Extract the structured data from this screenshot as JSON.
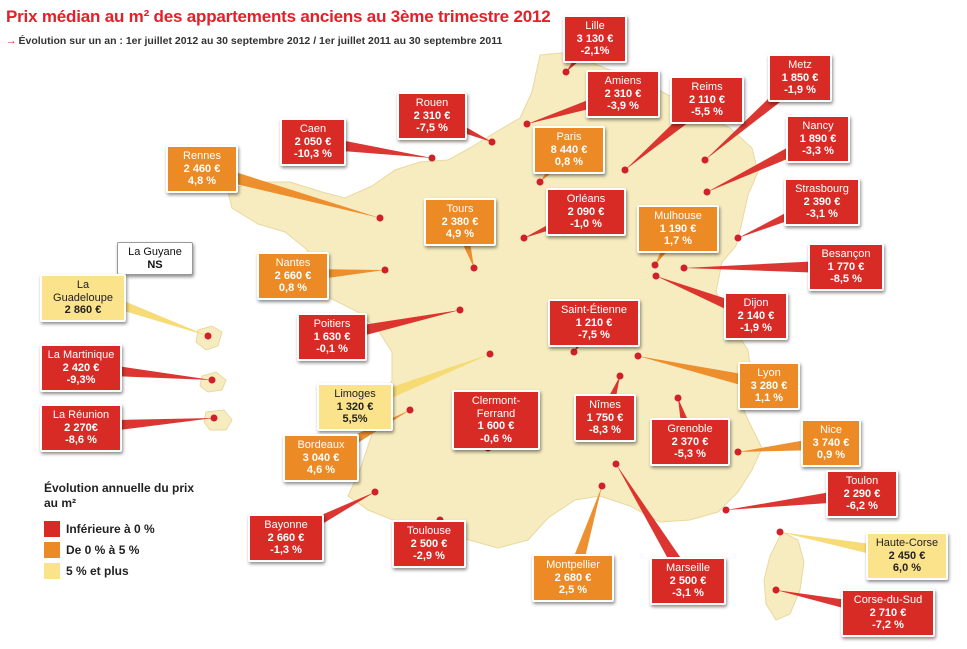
{
  "header": {
    "title": "Prix médian au m² des appartements anciens au 3ème trimestre 2012",
    "subtitle": "Évolution sur un an : 1er juillet 2012 au 30 septembre 2012 / 1er juillet 2011 au 30 septembre 2011"
  },
  "colors": {
    "red": "#d92b26",
    "orange": "#ec8a25",
    "yellow": "#fbe38c",
    "map_fill": "#f7ecc0",
    "dot": "#d0202a"
  },
  "legend": {
    "title": "Évolution annuelle du prix au m²",
    "items": [
      {
        "label": "Inférieure à 0 %",
        "color": "#d92b26"
      },
      {
        "label": "De 0 % à 5 %",
        "color": "#ec8a25"
      },
      {
        "label": "5 % et plus",
        "color": "#fbe38c"
      }
    ]
  },
  "cities": [
    {
      "name": "Lille",
      "price": "3 130 €",
      "evolution": "-2,1%",
      "category": "red"
    },
    {
      "name": "Amiens",
      "price": "2 310 €",
      "evolution": "-3,9 %",
      "category": "red"
    },
    {
      "name": "Reims",
      "price": "2 110 €",
      "evolution": "-5,5 %",
      "category": "red"
    },
    {
      "name": "Metz",
      "price": "1 850 €",
      "evolution": "-1,9 %",
      "category": "red"
    },
    {
      "name": "Nancy",
      "price": "1 890 €",
      "evolution": "-3,3 %",
      "category": "red"
    },
    {
      "name": "Strasbourg",
      "price": "2 390 €",
      "evolution": "-3,1 %",
      "category": "red"
    },
    {
      "name": "Rouen",
      "price": "2 310 €",
      "evolution": "-7,5 %",
      "category": "red"
    },
    {
      "name": "Caen",
      "price": "2 050 €",
      "evolution": "-10,3 %",
      "category": "red"
    },
    {
      "name": "Rennes",
      "price": "2 460 €",
      "evolution": "4,8 %",
      "category": "orange"
    },
    {
      "name": "Paris",
      "price": "8 440 €",
      "evolution": "0,8 %",
      "category": "orange"
    },
    {
      "name": "Orléans",
      "price": "2 090 €",
      "evolution": "-1,0 %",
      "category": "red"
    },
    {
      "name": "Mulhouse",
      "price": "1 190 €",
      "evolution": "1,7 %",
      "category": "orange"
    },
    {
      "name": "Tours",
      "price": "2 380 €",
      "evolution": "4,9 %",
      "category": "orange"
    },
    {
      "name": "Besançon",
      "price": "1 770 €",
      "evolution": "-8,5 %",
      "category": "red"
    },
    {
      "name": "Nantes",
      "price": "2 660 €",
      "evolution": "0,8 %",
      "category": "orange"
    },
    {
      "name": "Dijon",
      "price": "2 140 €",
      "evolution": "-1,9 %",
      "category": "red"
    },
    {
      "name": "Saint-Étienne",
      "price": "1 210 €",
      "evolution": "-7,5 %",
      "category": "red"
    },
    {
      "name": "Poitiers",
      "price": "1 630 €",
      "evolution": "-0,1 %",
      "category": "red"
    },
    {
      "name": "Lyon",
      "price": "3 280 €",
      "evolution": "1,1 %",
      "category": "orange"
    },
    {
      "name": "Limoges",
      "price": "1 320 €",
      "evolution": "5,5%",
      "category": "yellow"
    },
    {
      "name": "Clermont-Ferrand",
      "price": "1 600 €",
      "evolution": "-0,6 %",
      "category": "red"
    },
    {
      "name": "Nîmes",
      "price": "1 750 €",
      "evolution": "-8,3 %",
      "category": "red"
    },
    {
      "name": "Grenoble",
      "price": "2 370 €",
      "evolution": "-5,3 %",
      "category": "red"
    },
    {
      "name": "Nice",
      "price": "3 740 €",
      "evolution": "0,9 %",
      "category": "orange"
    },
    {
      "name": "Bordeaux",
      "price": "3 040 €",
      "evolution": "4,6 %",
      "category": "orange"
    },
    {
      "name": "Toulon",
      "price": "2 290 €",
      "evolution": "-6,2 %",
      "category": "red"
    },
    {
      "name": "Bayonne",
      "price": "2 660 €",
      "evolution": "-1,3 %",
      "category": "red"
    },
    {
      "name": "Toulouse",
      "price": "2 500 €",
      "evolution": "-2,9 %",
      "category": "red"
    },
    {
      "name": "Montpellier",
      "price": "2 680 €",
      "evolution": "2,5 %",
      "category": "orange"
    },
    {
      "name": "Marseille",
      "price": "2 500 €",
      "evolution": "-3,1 %",
      "category": "red"
    },
    {
      "name": "Haute-Corse",
      "price": "2 450 €",
      "evolution": "6,0 %",
      "category": "yellow"
    },
    {
      "name": "Corse-du-Sud",
      "price": "2 710 €",
      "evolution": "-7,2 %",
      "category": "red"
    },
    {
      "name": "La Guyane",
      "price": "NS",
      "evolution": "",
      "category": "white"
    },
    {
      "name": "La Guadeloupe",
      "price": "2 860 €",
      "evolution": "",
      "category": "yellow"
    },
    {
      "name": "La Martinique",
      "price": "2 420 €",
      "evolution": "-9,3%",
      "category": "red"
    },
    {
      "name": "La Réunion",
      "price": "2 270€",
      "evolution": "-8,6 %",
      "category": "red"
    }
  ]
}
